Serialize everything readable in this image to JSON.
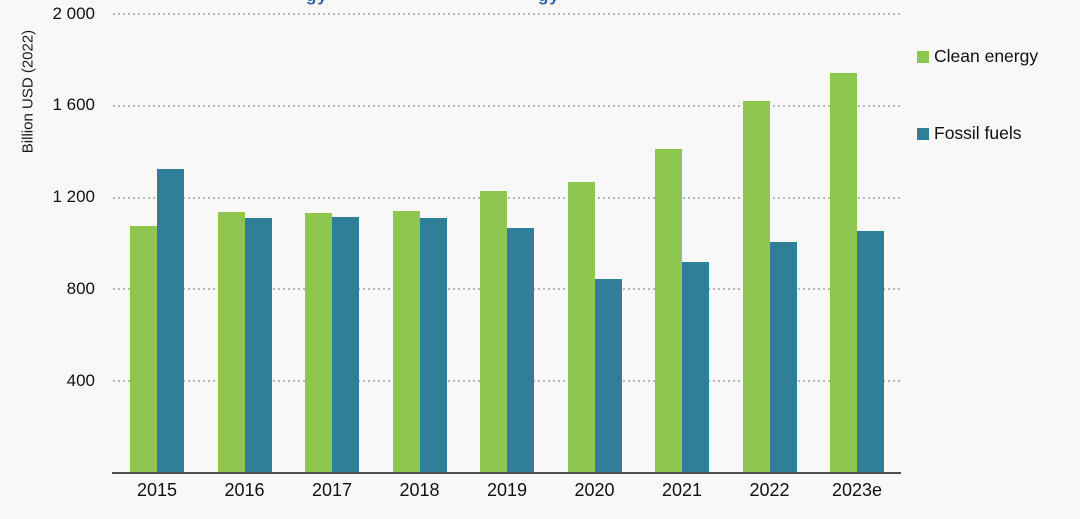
{
  "title_fragments": {
    "color": "#2d64a9",
    "items": [
      "gy",
      "gy"
    ]
  },
  "chart_data": {
    "type": "bar",
    "title": "",
    "ylabel": "Billion USD (2022)",
    "xlabel": "",
    "categories": [
      "2015",
      "2016",
      "2017",
      "2018",
      "2019",
      "2020",
      "2021",
      "2022",
      "2023e"
    ],
    "series": [
      {
        "name": "Clean energy",
        "color": "#8dc750",
        "values": [
          1073,
          1135,
          1128,
          1137,
          1224,
          1264,
          1409,
          1617,
          1740
        ]
      },
      {
        "name": "Fossil fuels",
        "color": "#2f7f99",
        "values": [
          1319,
          1106,
          1113,
          1108,
          1064,
          840,
          915,
          1001,
          1050
        ]
      }
    ],
    "ylim": [
      0,
      2000
    ],
    "yticks": [
      {
        "value": 2000,
        "label": "2 000"
      },
      {
        "value": 1600,
        "label": "1 600"
      },
      {
        "value": 1200,
        "label": "1 200"
      },
      {
        "value": 800,
        "label": "800"
      },
      {
        "value": 400,
        "label": "400"
      }
    ],
    "grid": "dotted-horizontal",
    "legend_position": "right"
  }
}
